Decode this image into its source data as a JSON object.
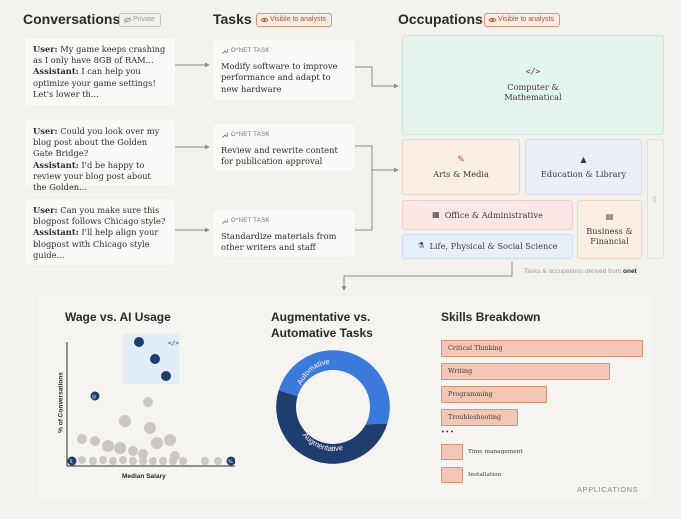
{
  "headers": {
    "conversations": "Conversations",
    "conversations_badge": "Private",
    "tasks": "Tasks",
    "tasks_badge": "Visible to analysts",
    "occupations": "Occupations",
    "occupations_badge": "Visible to analysts"
  },
  "conversations": [
    {
      "user_label": "User:",
      "user_text": " My game keeps crashing as I only have 8GB of RAM...",
      "assistant_label": "Assistant:",
      "assistant_text": " I can help you optimize your game settings! Let's lower th..."
    },
    {
      "user_label": "User:",
      "user_text": "  Could you look over my blog post about the Golden Gate Bridge?",
      "assistant_label": "Assistant:",
      "assistant_text": " I'd be happy to review your blog post about the Golden..."
    },
    {
      "user_label": "User:",
      "user_text": " Can you make sure this blogpost follows Chicago style?",
      "assistant_label": "Assistant:",
      "assistant_text": " I'll help align your blogpost with Chicago style guide..."
    }
  ],
  "tasks": [
    {
      "tag": "O*NET TASK",
      "text": "Modify software to improve performance and adapt to new hardware"
    },
    {
      "tag": "O*NET TASK",
      "text": "Review and rewrite content for publication approval"
    },
    {
      "tag": "O*NET TASK",
      "text": "Standardize materials from other writers and staff"
    }
  ],
  "occupations": {
    "computer": "Computer & Mathematical",
    "arts": "Arts & Media",
    "education": "Education & Library",
    "office": "Office & Administrative",
    "business": "Business & Financial",
    "life": "Life, Physical & Social Science",
    "side_label": "oti",
    "footer_prefix": "Tasks & occupations derived from",
    "footer_brand": "onet"
  },
  "wage": {
    "title": "Wage vs. AI Usage",
    "ylabel": "% of Conversations",
    "xlabel": "Median Salary"
  },
  "augment": {
    "title_line1": "Augmentative vs.",
    "title_line2": "Automative Tasks",
    "automative": "Automative",
    "augmentative": "Augmentative"
  },
  "skills": {
    "title": "Skills Breakdown",
    "items": [
      "Critical Thinking",
      "Writing",
      "Programming",
      "Troubleshooting"
    ],
    "more": "•••",
    "minor": [
      "Time management",
      "Installation"
    ],
    "footer": "APPLICATIONS"
  },
  "colors": {
    "accent_orange": "#d99471",
    "navy": "#1f3d6e",
    "blue": "#3b79dc",
    "mint": "#e6f4ee",
    "peach": "#fbeee3",
    "lavender": "#eceef8",
    "pink": "#fbe8e6",
    "skyblue": "#e6f0fa"
  }
}
